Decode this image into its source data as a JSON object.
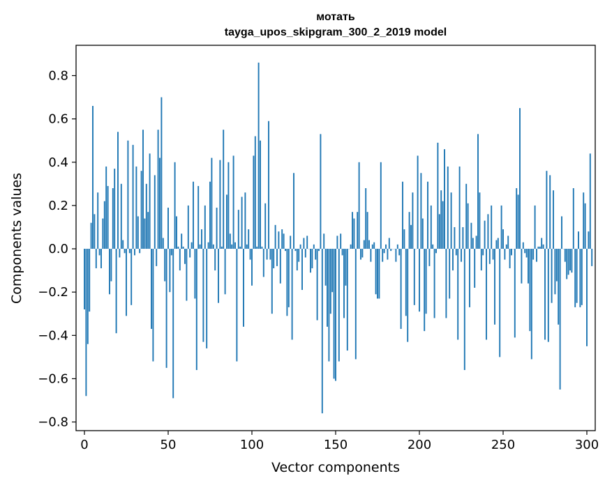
{
  "chart_data": {
    "type": "bar",
    "title": "мотать",
    "subtitle": "tayga_upos_skipgram_300_2_2019 model",
    "xlabel": "Vector components",
    "ylabel": "Components values",
    "xlim": [
      -5,
      305
    ],
    "ylim": [
      -0.84,
      0.94
    ],
    "xticks": [
      0,
      50,
      100,
      150,
      200,
      250,
      300
    ],
    "xtick_labels": [
      "0",
      "50",
      "100",
      "150",
      "200",
      "250",
      "300"
    ],
    "yticks": [
      -0.8,
      -0.6,
      -0.4,
      -0.2,
      0.0,
      0.2,
      0.4,
      0.6,
      0.8
    ],
    "ytick_labels": [
      "−0.8",
      "−0.6",
      "−0.4",
      "−0.2",
      "0.0",
      "0.2",
      "0.4",
      "0.6",
      "0.8"
    ],
    "bar_color": "#1f77b4",
    "values": [
      -0.28,
      -0.68,
      -0.44,
      -0.29,
      0.12,
      0.66,
      0.16,
      -0.09,
      0.26,
      -0.03,
      -0.09,
      0.14,
      0.22,
      0.38,
      0.29,
      -0.21,
      -0.15,
      0.28,
      0.37,
      -0.39,
      0.54,
      -0.04,
      0.3,
      0.04,
      -0.02,
      -0.31,
      0.5,
      -0.02,
      -0.26,
      0.48,
      -0.03,
      0.38,
      0.15,
      -0.02,
      0.36,
      0.55,
      0.14,
      0.3,
      0.17,
      0.44,
      -0.37,
      -0.52,
      0.34,
      -0.08,
      0.55,
      0.42,
      0.7,
      0.05,
      -0.15,
      -0.55,
      0.19,
      -0.2,
      -0.03,
      -0.69,
      0.4,
      0.15,
      0.01,
      -0.1,
      0.07,
      0.01,
      -0.07,
      -0.24,
      0.2,
      -0.04,
      0.03,
      0.31,
      -0.23,
      -0.56,
      0.29,
      0.02,
      0.09,
      -0.43,
      0.2,
      -0.46,
      0.03,
      0.31,
      0.42,
      0.02,
      -0.1,
      0.19,
      -0.25,
      0.41,
      0.01,
      0.55,
      -0.21,
      0.25,
      0.4,
      0.07,
      0.02,
      0.43,
      0.03,
      -0.52,
      0.18,
      0.01,
      0.24,
      -0.36,
      0.26,
      0.02,
      0.09,
      -0.05,
      -0.17,
      0.43,
      0.52,
      0.01,
      0.86,
      0.5,
      0.01,
      -0.13,
      0.21,
      -0.05,
      0.59,
      -0.05,
      -0.3,
      -0.09,
      0.11,
      -0.08,
      0.08,
      -0.16,
      0.09,
      0.07,
      -0.01,
      -0.31,
      -0.27,
      0.06,
      -0.42,
      0.35,
      -0.01,
      -0.1,
      -0.06,
      0.02,
      -0.19,
      0.05,
      -0.04,
      0.06,
      0.0,
      -0.11,
      -0.09,
      0.02,
      -0.05,
      -0.33,
      -0.01,
      0.53,
      -0.76,
      0.07,
      -0.17,
      -0.36,
      -0.52,
      -0.3,
      -0.2,
      -0.6,
      -0.61,
      0.06,
      -0.52,
      0.07,
      -0.03,
      -0.32,
      -0.17,
      -0.47,
      0.0,
      0.02,
      0.17,
      0.14,
      -0.51,
      0.17,
      0.4,
      -0.05,
      -0.04,
      0.04,
      0.28,
      0.17,
      0.04,
      -0.06,
      0.02,
      0.03,
      -0.21,
      -0.23,
      -0.23,
      0.4,
      -0.06,
      -0.02,
      0.02,
      -0.05,
      0.05,
      -0.01,
      0.0,
      0.0,
      -0.06,
      0.02,
      -0.03,
      -0.37,
      0.31,
      0.09,
      -0.31,
      -0.43,
      0.17,
      0.11,
      0.26,
      -0.26,
      0.0,
      0.43,
      -0.29,
      0.35,
      0.14,
      -0.38,
      -0.3,
      0.31,
      -0.08,
      0.2,
      0.02,
      -0.32,
      -0.02,
      0.49,
      0.16,
      0.27,
      0.22,
      0.46,
      -0.32,
      0.38,
      -0.23,
      0.26,
      -0.1,
      0.1,
      -0.03,
      -0.42,
      0.38,
      -0.06,
      0.1,
      -0.56,
      0.3,
      0.21,
      -0.27,
      0.12,
      0.05,
      -0.18,
      0.06,
      0.53,
      0.26,
      -0.1,
      -0.03,
      0.13,
      -0.42,
      0.16,
      -0.07,
      0.2,
      -0.05,
      -0.35,
      0.04,
      0.05,
      -0.5,
      0.2,
      0.09,
      -0.05,
      0.02,
      0.06,
      -0.09,
      -0.03,
      0.0,
      -0.41,
      0.28,
      0.25,
      0.65,
      -0.16,
      0.03,
      -0.02,
      -0.04,
      -0.16,
      -0.38,
      -0.51,
      -0.05,
      0.2,
      -0.06,
      0.01,
      0.01,
      0.05,
      0.02,
      -0.42,
      0.36,
      -0.43,
      0.34,
      -0.25,
      0.27,
      -0.21,
      -0.15,
      -0.35,
      -0.65,
      0.15,
      0.0,
      -0.06,
      -0.14,
      -0.12,
      -0.1,
      -0.11,
      0.28,
      -0.27,
      -0.25,
      0.08,
      -0.27,
      -0.26,
      0.26,
      0.21,
      -0.45,
      0.08,
      0.44,
      -0.08
    ]
  }
}
